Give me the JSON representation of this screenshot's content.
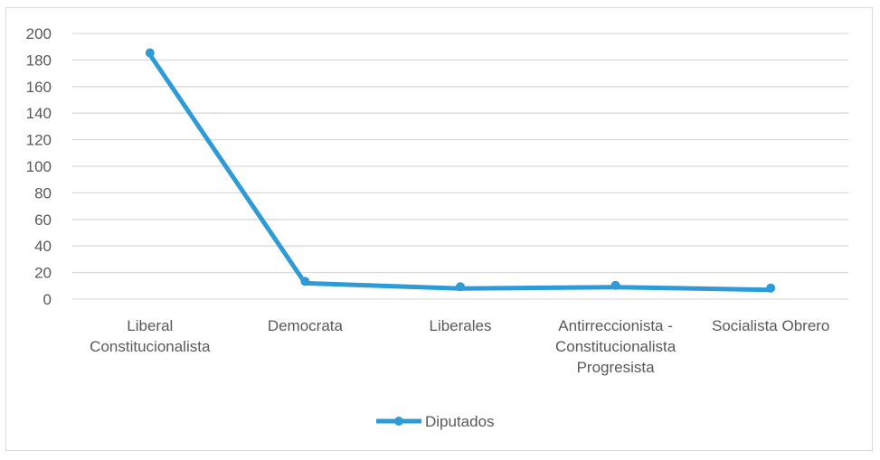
{
  "chart_data": {
    "type": "line",
    "title": "",
    "xlabel": "",
    "ylabel": "",
    "categories": [
      [
        "Liberal",
        "Constitucionalista"
      ],
      [
        "Democrata"
      ],
      [
        "Liberales"
      ],
      [
        "Antirreccionista -",
        "Constitucionalista",
        "Progresista"
      ],
      [
        "Socialista Obrero"
      ]
    ],
    "series": [
      {
        "name": "Diputados",
        "values": [
          184,
          12,
          8,
          9,
          7
        ],
        "color": "#2e9bd6"
      }
    ],
    "ylim": [
      0,
      200
    ],
    "yticks": [
      0,
      20,
      40,
      60,
      80,
      100,
      120,
      140,
      160,
      180,
      200
    ],
    "grid": true,
    "legend": "bottom"
  }
}
